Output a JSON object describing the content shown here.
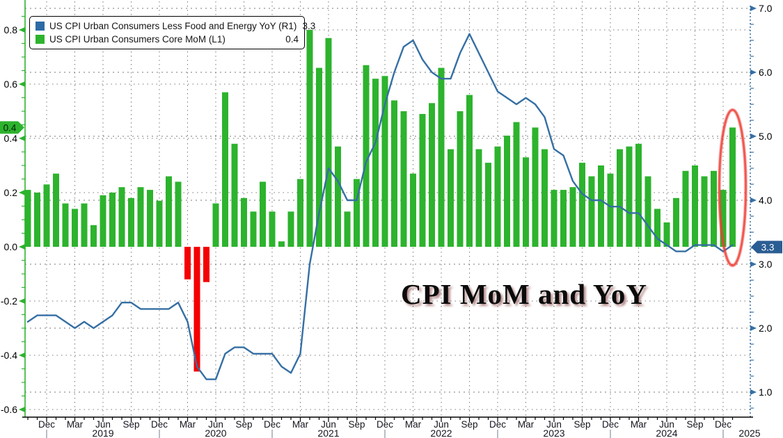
{
  "watermark": "CPI MoM and YoY",
  "colors": {
    "mom_green": "#2db32d",
    "mom_negative_red": "#f40000",
    "yoy_line_blue": "#356fa4",
    "right_badge_blue": "#2a5d93",
    "highlight_ellipse_red": "#ee3a30",
    "gridline_gray": "#777777"
  },
  "legend": {
    "series": [
      {
        "label": "US CPI Urban Consumers Less Food and Energy YoY (R1)",
        "value": "3.3",
        "color": "#2d6ba6"
      },
      {
        "label": "US CPI Urban Consumers Core MoM (L1)",
        "value": "0.4",
        "color": "#2db32d"
      }
    ]
  },
  "badges": {
    "left_current_mom": "0.4",
    "right_current_yoy": "3.3"
  },
  "chart_data": {
    "type": "bar+line",
    "title": "CPI MoM and YoY",
    "xlabel": "",
    "x_months": [
      "2018-10",
      "2018-11",
      "2018-12",
      "2019-01",
      "2019-02",
      "2019-03",
      "2019-04",
      "2019-05",
      "2019-06",
      "2019-07",
      "2019-08",
      "2019-09",
      "2019-10",
      "2019-11",
      "2019-12",
      "2020-01",
      "2020-02",
      "2020-03",
      "2020-04",
      "2020-05",
      "2020-06",
      "2020-07",
      "2020-08",
      "2020-09",
      "2020-10",
      "2020-11",
      "2020-12",
      "2021-01",
      "2021-02",
      "2021-03",
      "2021-04",
      "2021-05",
      "2021-06",
      "2021-07",
      "2021-08",
      "2021-09",
      "2021-10",
      "2021-11",
      "2021-12",
      "2022-01",
      "2022-02",
      "2022-03",
      "2022-04",
      "2022-05",
      "2022-06",
      "2022-07",
      "2022-08",
      "2022-09",
      "2022-10",
      "2022-11",
      "2022-12",
      "2023-01",
      "2023-02",
      "2023-03",
      "2023-04",
      "2023-05",
      "2023-06",
      "2023-07",
      "2023-08",
      "2023-09",
      "2023-10",
      "2023-11",
      "2023-12",
      "2024-01",
      "2024-02",
      "2024-03",
      "2024-04",
      "2024-05",
      "2024-06",
      "2024-07",
      "2024-08",
      "2024-09",
      "2024-10",
      "2024-11",
      "2024-12",
      "2025-01"
    ],
    "series": [
      {
        "name": "US CPI Urban Consumers Core MoM (L1)",
        "type": "bar",
        "axis": "left",
        "values": [
          0.21,
          0.2,
          0.23,
          0.27,
          0.16,
          0.14,
          0.16,
          0.08,
          0.19,
          0.2,
          0.22,
          0.18,
          0.22,
          0.21,
          0.17,
          0.26,
          0.24,
          -0.12,
          -0.46,
          -0.13,
          0.16,
          0.57,
          0.38,
          0.18,
          0.13,
          0.24,
          0.13,
          0.02,
          0.13,
          0.25,
          0.8,
          0.66,
          0.77,
          0.37,
          0.13,
          0.25,
          0.67,
          0.62,
          0.63,
          0.54,
          0.5,
          0.27,
          0.49,
          0.53,
          0.66,
          0.36,
          0.5,
          0.56,
          0.36,
          0.31,
          0.37,
          0.41,
          0.46,
          0.33,
          0.44,
          0.36,
          0.21,
          0.21,
          0.22,
          0.31,
          0.26,
          0.3,
          0.27,
          0.36,
          0.37,
          0.38,
          0.26,
          0.14,
          0.09,
          0.18,
          0.28,
          0.3,
          0.26,
          0.28,
          0.21,
          0.44
        ]
      },
      {
        "name": "US CPI Urban Consumers Less Food and Energy YoY (R1)",
        "type": "line",
        "axis": "right",
        "values": [
          2.1,
          2.2,
          2.2,
          2.2,
          2.1,
          2.0,
          2.1,
          2.0,
          2.1,
          2.2,
          2.4,
          2.4,
          2.3,
          2.3,
          2.3,
          2.3,
          2.4,
          2.1,
          1.4,
          1.2,
          1.2,
          1.6,
          1.7,
          1.7,
          1.6,
          1.6,
          1.6,
          1.4,
          1.3,
          1.6,
          3.0,
          3.8,
          4.5,
          4.3,
          4.0,
          4.0,
          4.6,
          4.9,
          5.5,
          6.0,
          6.4,
          6.5,
          6.2,
          6.0,
          5.9,
          5.9,
          6.3,
          6.6,
          6.3,
          6.0,
          5.7,
          5.6,
          5.5,
          5.6,
          5.5,
          5.3,
          4.8,
          4.7,
          4.3,
          4.1,
          4.0,
          4.0,
          3.9,
          3.9,
          3.8,
          3.8,
          3.6,
          3.4,
          3.3,
          3.2,
          3.2,
          3.3,
          3.3,
          3.3,
          3.2,
          3.3
        ]
      }
    ],
    "left_axis": {
      "tick_labels": [
        "0.8",
        "0.6",
        "0.4",
        "0.2",
        "0.0",
        "-0.2",
        "-0.4",
        "-0.6"
      ],
      "min": -0.63,
      "max": 0.89,
      "color": "#2db32d",
      "current_value": "0.4"
    },
    "right_axis": {
      "tick_labels": [
        "7.0",
        "6.0",
        "5.0",
        "4.0",
        "3.0",
        "2.0",
        "1.0"
      ],
      "min": 0.6,
      "max": 7.05,
      "color": "#356fa4",
      "current_value": "3.3"
    },
    "x_axis": {
      "quarter_labels": [
        "Dec",
        "Mar",
        "Jun",
        "Sep",
        "Dec",
        "Mar",
        "Jun",
        "Sep",
        "Dec",
        "Mar",
        "Jun",
        "Sep",
        "Dec",
        "Mar",
        "Jun",
        "Sep",
        "Dec",
        "Mar",
        "Jun",
        "Sep",
        "Dec",
        "Mar",
        "Jun",
        "Sep",
        "Dec"
      ],
      "year_labels": [
        "2019",
        "2020",
        "2021",
        "2022",
        "2023",
        "2024",
        "2025"
      ]
    },
    "grid": "dotted, both axes, vertical at quarters",
    "legend_position": "top-left",
    "annotations": {
      "highlight": "red ellipse around last bar (2025-01, MoM 0.4)"
    }
  }
}
